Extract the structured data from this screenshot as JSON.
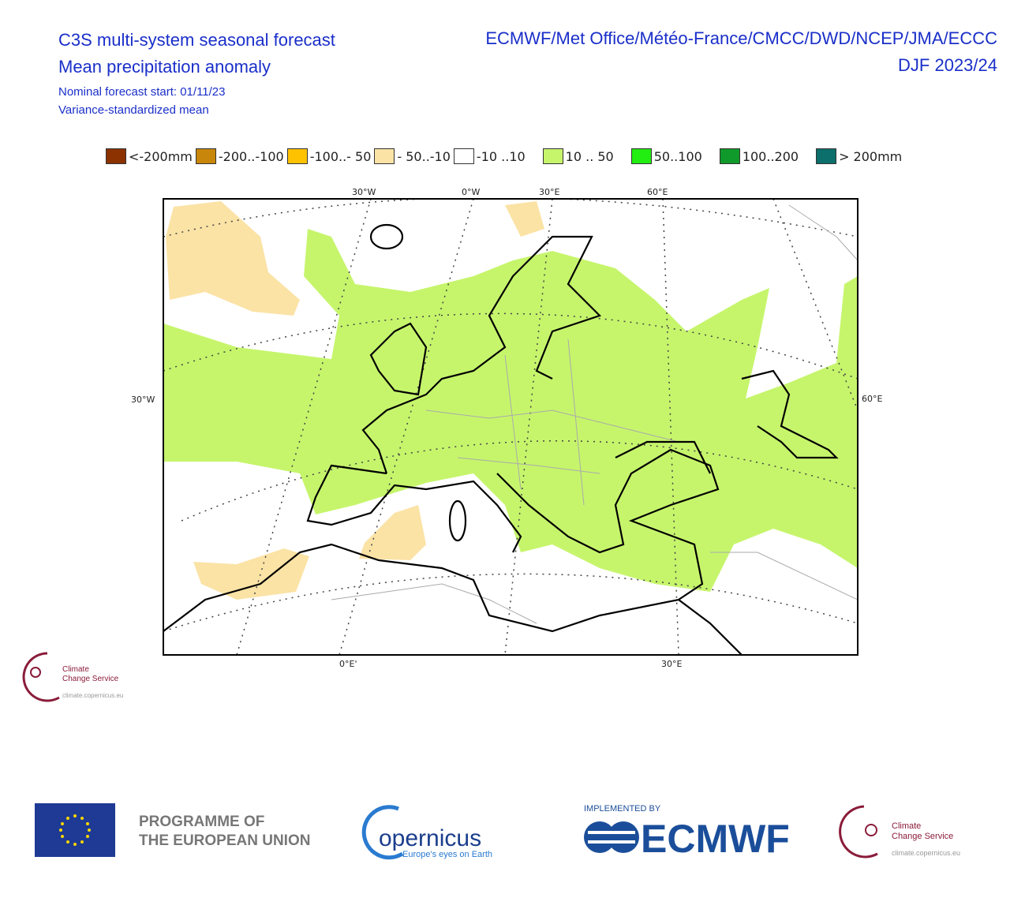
{
  "header": {
    "title": "C3S multi-system seasonal forecast",
    "subtitle": "Mean precipitation anomaly",
    "forecast_start": "Nominal forecast start: 01/11/23",
    "method": "Variance-standardized mean",
    "centres": "ECMWF/Met Office/Météo-France/CMCC/DWD/NCEP/JMA/ECCC",
    "period": "DJF 2023/24"
  },
  "legend": [
    {
      "label": "<-200mm",
      "color": "#8b3200"
    },
    {
      "label": "-200..-100",
      "color": "#c8870a"
    },
    {
      "label": "-100..- 50",
      "color": "#ffc200"
    },
    {
      "label": "- 50..-10",
      "color": "#fbe3a6"
    },
    {
      "label": "-10 ..10",
      "color": "#ffffff"
    },
    {
      "label": "10 .. 50",
      "color": "#c6f56c"
    },
    {
      "label": "50..100",
      "color": "#22ee11"
    },
    {
      "label": "100..200",
      "color": "#109a2b"
    },
    {
      "label": "> 200mm",
      "color": "#0c6f6b"
    }
  ],
  "map": {
    "top_labels": [
      "30°W",
      "0°W",
      "30°E",
      "60°E"
    ],
    "left_label": "30°W",
    "right_label": "60°E",
    "bottom_labels": [
      "0°E'",
      "30°E"
    ]
  },
  "small_logo": {
    "line1": "Climate",
    "line2": "Change Service",
    "url": "climate.copernicus.eu"
  },
  "footer": {
    "programme_line1": "PROGRAMME OF",
    "programme_line2": "THE EUROPEAN UNION",
    "copernicus": "opernicus",
    "copernicus_tagline": "Europe's eyes on Earth",
    "implemented_by": "IMPLEMENTED BY",
    "ecmwf": "ECMWF",
    "climate_line1": "Climate",
    "climate_line2": "Change Service",
    "climate_url": "climate.copernicus.eu"
  }
}
